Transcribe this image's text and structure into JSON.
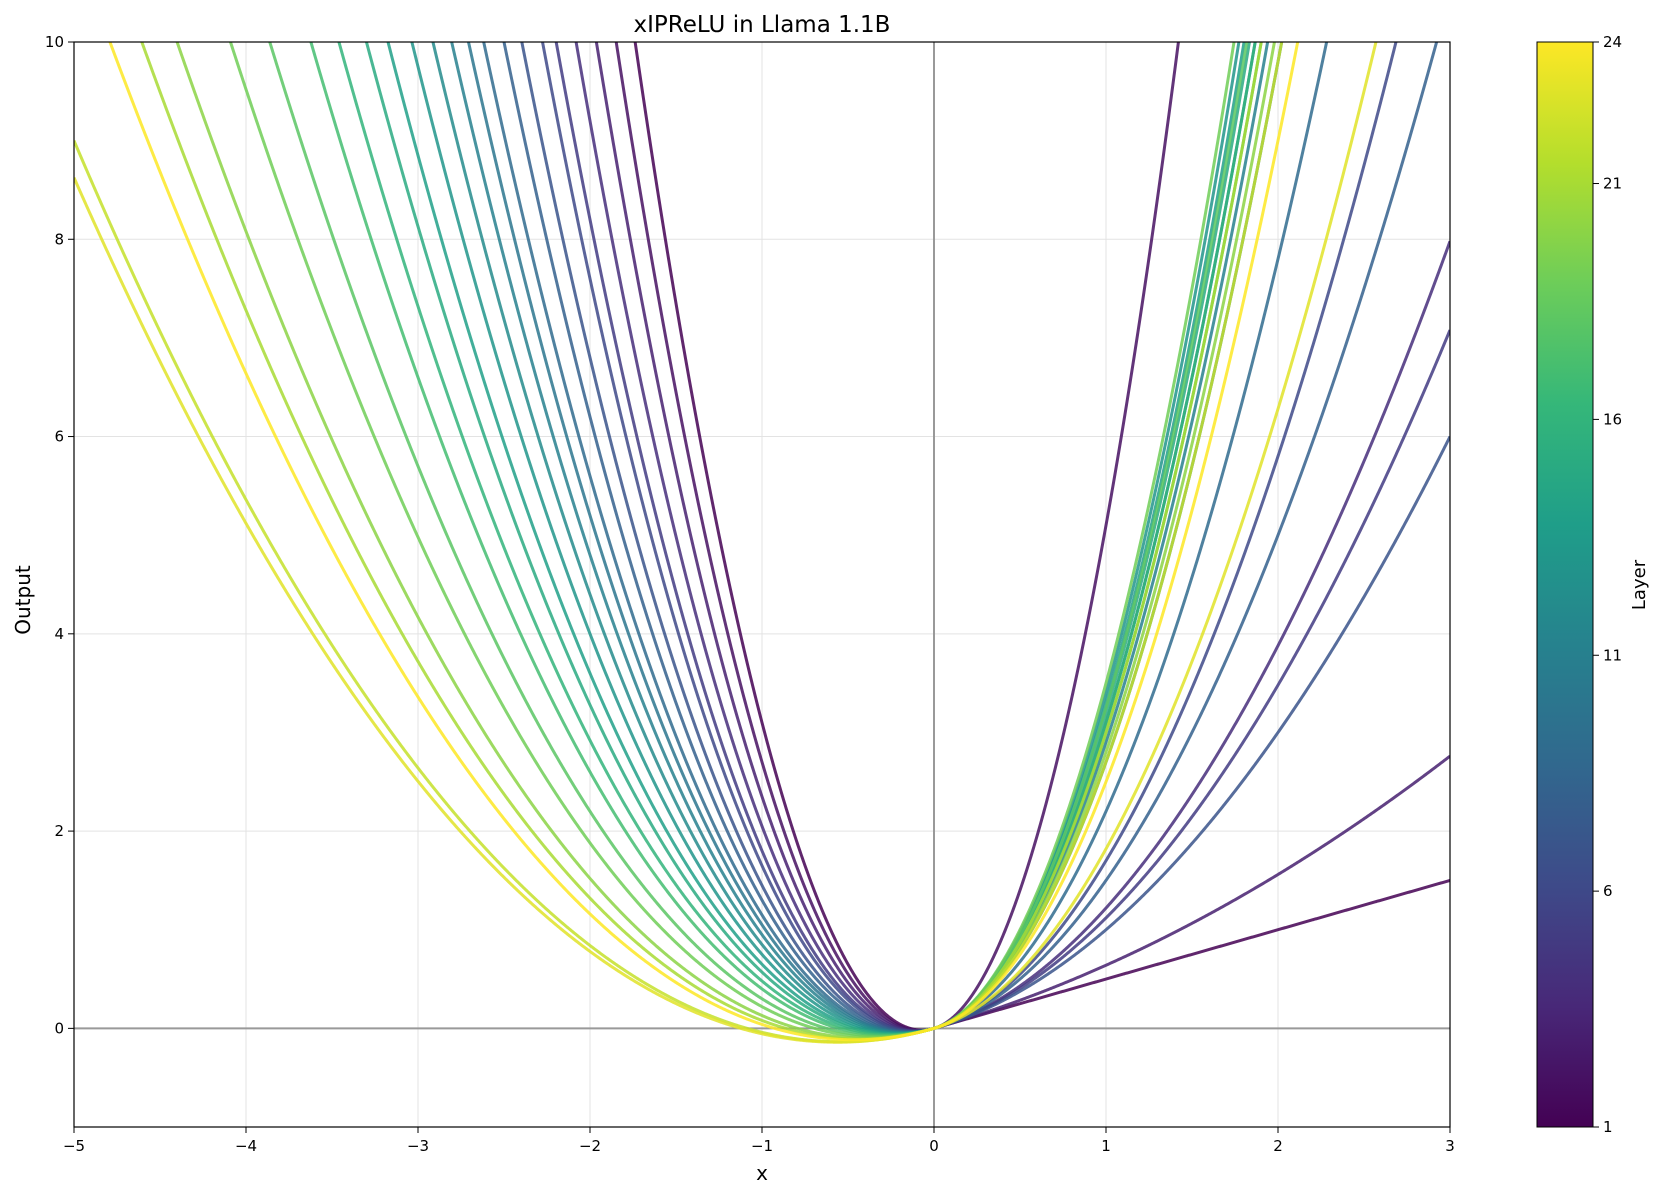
{
  "chart_data": {
    "type": "line",
    "title": "xIPReLU in Llama 1.1B",
    "xlabel": "x",
    "ylabel": "Output",
    "xlim": [
      -5,
      3
    ],
    "ylim": [
      -1,
      10
    ],
    "xticks": [
      -5,
      -4,
      -3,
      -2,
      -1,
      0,
      1,
      2,
      3
    ],
    "xtick_labels": [
      "−5",
      "−4",
      "−3",
      "−2",
      "−1",
      "0",
      "1",
      "2",
      "3"
    ],
    "yticks": [
      0,
      2,
      4,
      6,
      8,
      10
    ],
    "ytick_labels": [
      "0",
      "2",
      "4",
      "6",
      "8",
      "10"
    ],
    "grid": true,
    "reference_lines": {
      "x": 0,
      "y": 0,
      "color": "#999999"
    },
    "colormap": "viridis",
    "colorbar": {
      "label": "Layer",
      "range": [
        1,
        24
      ],
      "ticks": [
        1,
        6,
        11,
        16,
        21,
        24
      ],
      "tick_labels": [
        "1",
        "6",
        "11",
        "16",
        "21",
        "24"
      ]
    },
    "function_note": "Each layer curve follows f(x)=a_p*x^2+b*x for x>=0 and f(x)=a_n*x^2+b*x for x<0",
    "series": [
      {
        "layer": 1,
        "a_p": 0.0,
        "a_n": 3.6,
        "b": 0.5
      },
      {
        "layer": 2,
        "a_p": 4.6,
        "a_n": 3.2,
        "b": 0.5
      },
      {
        "layer": 3,
        "a_p": 0.14,
        "a_n": 2.85,
        "b": 0.5
      },
      {
        "layer": 4,
        "a_p": 0.72,
        "a_n": 2.55,
        "b": 0.5
      },
      {
        "layer": 5,
        "a_p": 0.62,
        "a_n": 2.3,
        "b": 0.5
      },
      {
        "layer": 6,
        "a_p": 1.2,
        "a_n": 2.15,
        "b": 0.5
      },
      {
        "layer": 7,
        "a_p": 0.5,
        "a_n": 1.95,
        "b": 0.5
      },
      {
        "layer": 8,
        "a_p": 1.0,
        "a_n": 1.8,
        "b": 0.5
      },
      {
        "layer": 9,
        "a_p": 1.7,
        "a_n": 1.65,
        "b": 0.5
      },
      {
        "layer": 10,
        "a_p": 2.2,
        "a_n": 1.55,
        "b": 0.5
      },
      {
        "layer": 11,
        "a_p": 2.4,
        "a_n": 1.45,
        "b": 0.5
      },
      {
        "layer": 12,
        "a_p": 2.6,
        "a_n": 1.35,
        "b": 0.5
      },
      {
        "layer": 13,
        "a_p": 2.9,
        "a_n": 1.25,
        "b": 0.5
      },
      {
        "layer": 14,
        "a_p": 2.8,
        "a_n": 1.15,
        "b": 0.5
      },
      {
        "layer": 15,
        "a_p": 2.7,
        "a_n": 1.07,
        "b": 0.5
      },
      {
        "layer": 16,
        "a_p": 2.6,
        "a_n": 0.98,
        "b": 0.5
      },
      {
        "layer": 17,
        "a_p": 2.5,
        "a_n": 0.9,
        "b": 0.5
      },
      {
        "layer": 18,
        "a_p": 2.75,
        "a_n": 0.8,
        "b": 0.5
      },
      {
        "layer": 19,
        "a_p": 3.0,
        "a_n": 0.72,
        "b": 0.5
      },
      {
        "layer": 20,
        "a_p": 2.3,
        "a_n": 0.63,
        "b": 0.5
      },
      {
        "layer": 21,
        "a_p": 2.5,
        "a_n": 0.58,
        "b": 0.5
      },
      {
        "layer": 22,
        "a_p": 2.2,
        "a_n": 0.46,
        "b": 0.5
      },
      {
        "layer": 23,
        "a_p": 1.32,
        "a_n": 0.445,
        "b": 0.5
      },
      {
        "layer": 24,
        "a_p": 2.0,
        "a_n": 0.54,
        "b": 0.5
      }
    ]
  }
}
